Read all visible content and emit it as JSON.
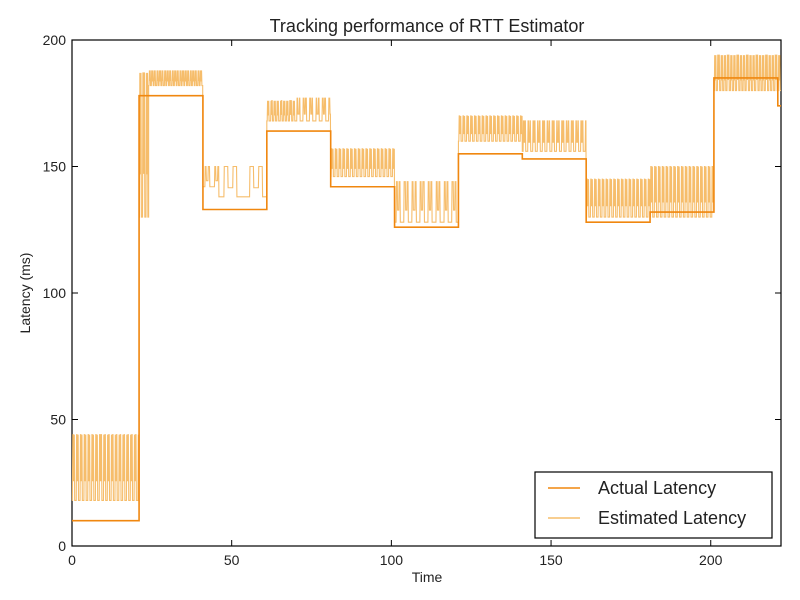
{
  "chart_data": {
    "type": "line",
    "title": "Tracking performance of RTT Estimator",
    "xlabel": "Time",
    "ylabel": "Latency (ms)",
    "xlim": [
      0,
      222
    ],
    "ylim": [
      0,
      200
    ],
    "xticks": [
      0,
      50,
      100,
      150,
      200
    ],
    "yticks": [
      0,
      50,
      100,
      150,
      200
    ],
    "grid": false,
    "legend_position": "bottom-right",
    "series": [
      {
        "name": "Actual Latency",
        "color": "#f0870f",
        "type": "step",
        "segments": [
          {
            "x0": 0,
            "x1": 21,
            "y": 10
          },
          {
            "x0": 21,
            "x1": 41,
            "y": 178
          },
          {
            "x0": 41,
            "x1": 61,
            "y": 133
          },
          {
            "x0": 61,
            "x1": 81,
            "y": 164
          },
          {
            "x0": 81,
            "x1": 101,
            "y": 142
          },
          {
            "x0": 101,
            "x1": 121,
            "y": 126
          },
          {
            "x0": 121,
            "x1": 141,
            "y": 155
          },
          {
            "x0": 141,
            "x1": 161,
            "y": 153
          },
          {
            "x0": 161,
            "x1": 181,
            "y": 128
          },
          {
            "x0": 181,
            "x1": 201,
            "y": 132
          },
          {
            "x0": 201,
            "x1": 221,
            "y": 185
          },
          {
            "x0": 221,
            "x1": 222,
            "y": 174
          }
        ]
      },
      {
        "name": "Estimated Latency",
        "color": "#f6bd6b",
        "type": "oscillating",
        "segments": [
          {
            "x0": 0,
            "x1": 21,
            "low": 18,
            "high": 44,
            "period": 1.2
          },
          {
            "x0": 21,
            "x1": 24,
            "low": 130,
            "high": 187,
            "period": 1.0
          },
          {
            "x0": 24,
            "x1": 41,
            "low": 182,
            "high": 188,
            "period": 0.8
          },
          {
            "x0": 41,
            "x1": 46,
            "low": 142,
            "high": 150,
            "period": 3.0
          },
          {
            "x0": 46,
            "x1": 61,
            "low": 138,
            "high": 150,
            "period": 8.0
          },
          {
            "x0": 61,
            "x1": 70,
            "low": 168,
            "high": 176,
            "period": 1.0
          },
          {
            "x0": 70,
            "x1": 81,
            "low": 168,
            "high": 177,
            "period": 2.0
          },
          {
            "x0": 81,
            "x1": 101,
            "low": 146,
            "high": 157,
            "period": 1.2
          },
          {
            "x0": 101,
            "x1": 121,
            "low": 128,
            "high": 144,
            "period": 2.5
          },
          {
            "x0": 121,
            "x1": 141,
            "low": 160,
            "high": 170,
            "period": 1.2
          },
          {
            "x0": 141,
            "x1": 161,
            "low": 156,
            "high": 168,
            "period": 1.5
          },
          {
            "x0": 161,
            "x1": 181,
            "low": 130,
            "high": 145,
            "period": 1.2
          },
          {
            "x0": 181,
            "x1": 201,
            "low": 130,
            "high": 150,
            "period": 1.2
          },
          {
            "x0": 201,
            "x1": 222,
            "low": 180,
            "high": 194,
            "period": 1.0
          }
        ]
      }
    ]
  }
}
